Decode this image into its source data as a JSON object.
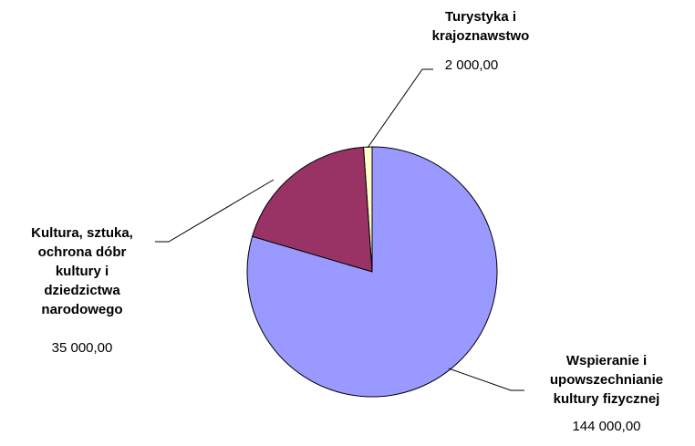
{
  "chart_data": {
    "type": "pie",
    "categories": [
      "Wspieranie i upowszechnianie kultury fizycznej",
      "Kultura, sztuka, ochrona dóbr kultury i dziedzictwa narodowego",
      "Turystyka i krajoznawstwo"
    ],
    "values": [
      144000,
      35000,
      2000
    ],
    "value_labels": [
      "144 000,00",
      "35 000,00",
      "2 000,00"
    ],
    "colors": [
      "#9999ff",
      "#993366",
      "#ffffcc"
    ]
  }
}
